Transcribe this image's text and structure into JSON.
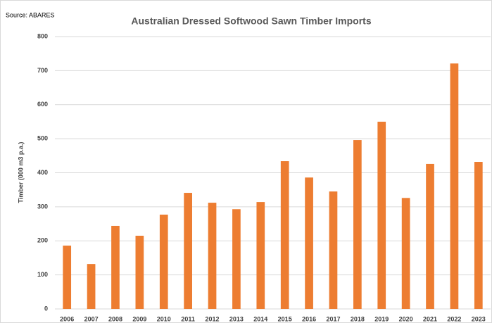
{
  "chart_data": {
    "type": "bar",
    "title": "Australian Dressed Softwood Sawn Timber Imports",
    "source": "Source: ABARES",
    "y_label": "Timber (000 m3 p.a.)",
    "categories": [
      "2006",
      "2007",
      "2008",
      "2009",
      "2010",
      "2011",
      "2012",
      "2013",
      "2014",
      "2015",
      "2016",
      "2017",
      "2018",
      "2019",
      "2020",
      "2021",
      "2022",
      "2023"
    ],
    "values": [
      186,
      132,
      244,
      215,
      277,
      341,
      312,
      293,
      314,
      434,
      386,
      345,
      496,
      550,
      326,
      426,
      721,
      432
    ],
    "color": "#ed7d31",
    "ylim": [
      0,
      800
    ],
    "yticks": [
      0,
      100,
      200,
      300,
      400,
      500,
      600,
      700,
      800
    ],
    "grid": true
  }
}
